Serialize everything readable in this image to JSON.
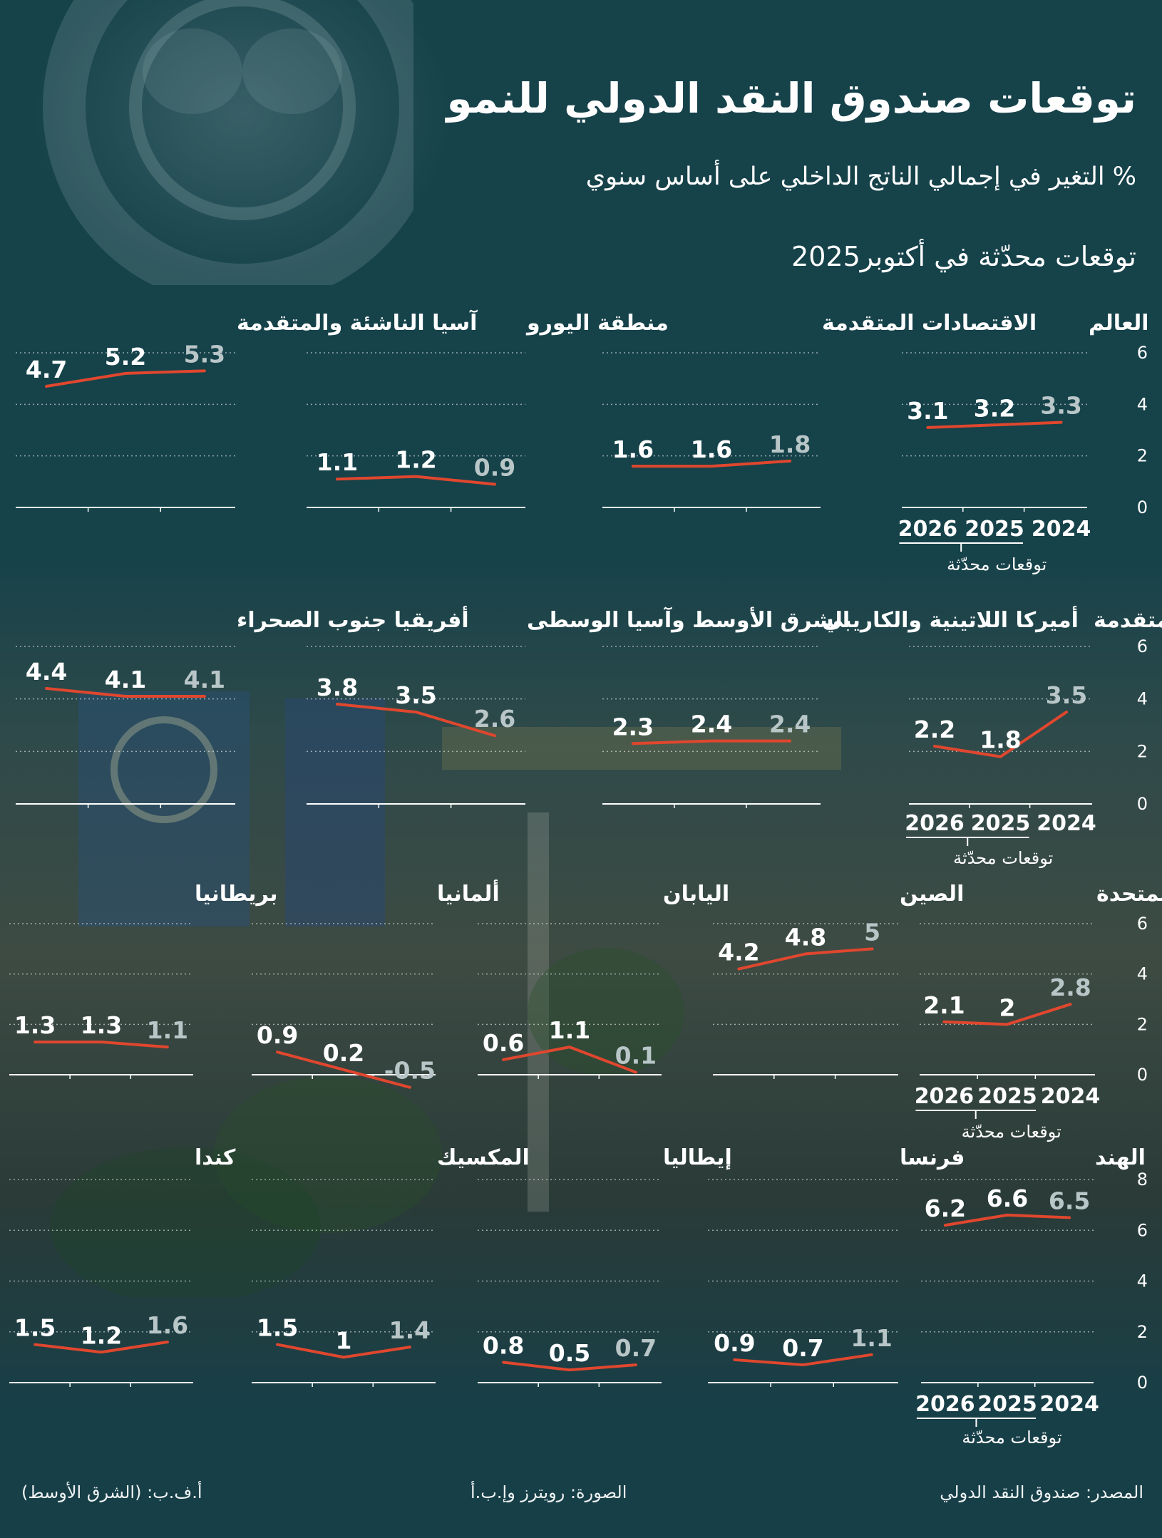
{
  "title": "توقعات صندوق النقد الدولي للنمو",
  "subtitle": "% التغير في إجمالي الناتج الداخلي على أساس سنوي",
  "subtitle2": "توقعات محدّثة في أكتوبر2025",
  "footer": {
    "source": "المصدر: صندوق النقد الدولي",
    "photo": "الصورة: رويترز وإ.ب.أ",
    "credit": "أ.ف.ب: (الشرق الأوسط)"
  },
  "legend_label": "توقعات محدّثة",
  "colors": {
    "background": "#173f48",
    "line": "#e0472e",
    "text": "#ffffff",
    "muted": "#b9c6c8"
  },
  "chart_data": [
    {
      "type": "line",
      "title": "العالم",
      "x": [
        "2024",
        "2025",
        "2026"
      ],
      "values": [
        3.3,
        3.2,
        3.1
      ],
      "labels": [
        "3.3",
        "3.2",
        "3.1"
      ],
      "ylim": [
        0,
        6
      ],
      "yticks": [
        "0",
        "2",
        "4",
        "6"
      ]
    },
    {
      "type": "line",
      "title": "الاقتصادات المتقدمة",
      "x": [
        "2024",
        "2025",
        "2026"
      ],
      "values": [
        1.8,
        1.6,
        1.6
      ],
      "labels": [
        "1.8",
        "1.6",
        "1.6"
      ],
      "ylim": [
        0,
        6
      ]
    },
    {
      "type": "line",
      "title": "منطقة اليورو",
      "x": [
        "2024",
        "2025",
        "2026"
      ],
      "values": [
        0.9,
        1.2,
        1.1
      ],
      "labels": [
        "0.9",
        "1.2",
        "1.1"
      ],
      "ylim": [
        0,
        6
      ]
    },
    {
      "type": "line",
      "title": "آسيا الناشئة والمتقدمة",
      "x": [
        "2024",
        "2025",
        "2026"
      ],
      "values": [
        5.3,
        5.2,
        4.7
      ],
      "labels": [
        "5.3",
        "5.2",
        "4.7"
      ],
      "ylim": [
        0,
        6
      ]
    },
    {
      "type": "line",
      "title": "أوروبا الناشئة والمتقدمة",
      "x": [
        "2024",
        "2025",
        "2026"
      ],
      "values": [
        3.5,
        1.8,
        2.2
      ],
      "labels": [
        "3.5",
        "1.8",
        "2.2"
      ],
      "ylim": [
        0,
        6
      ],
      "yticks": [
        "0",
        "2",
        "4",
        "6"
      ]
    },
    {
      "type": "line",
      "title": "أميركا اللاتينية والكاريبي",
      "x": [
        "2024",
        "2025",
        "2026"
      ],
      "values": [
        2.4,
        2.4,
        2.3
      ],
      "labels": [
        "2.4",
        "2.4",
        "2.3"
      ],
      "ylim": [
        0,
        6
      ]
    },
    {
      "type": "line",
      "title": "الشرق الأوسط وآسيا الوسطى",
      "x": [
        "2024",
        "2025",
        "2026"
      ],
      "values": [
        2.6,
        3.5,
        3.8
      ],
      "labels": [
        "2.6",
        "3.5",
        "3.8"
      ],
      "ylim": [
        0,
        6
      ]
    },
    {
      "type": "line",
      "title": "أفريقيا جنوب الصحراء",
      "x": [
        "2024",
        "2025",
        "2026"
      ],
      "values": [
        4.1,
        4.1,
        4.4
      ],
      "labels": [
        "4.1",
        "4.1",
        "4.4"
      ],
      "ylim": [
        0,
        6
      ]
    },
    {
      "type": "line",
      "title": "الولايات المتحدة",
      "x": [
        "2024",
        "2025",
        "2026"
      ],
      "values": [
        2.8,
        2,
        2.1
      ],
      "labels": [
        "2.8",
        "2",
        "2.1"
      ],
      "ylim": [
        0,
        6
      ],
      "yticks": [
        "0",
        "2",
        "4",
        "6"
      ]
    },
    {
      "type": "line",
      "title": "الصين",
      "x": [
        "2024",
        "2025",
        "2026"
      ],
      "values": [
        5,
        4.8,
        4.2
      ],
      "labels": [
        "5",
        "4.8",
        "4.2"
      ],
      "ylim": [
        0,
        6
      ]
    },
    {
      "type": "line",
      "title": "اليابان",
      "x": [
        "2024",
        "2025",
        "2026"
      ],
      "values": [
        0.1,
        1.1,
        0.6
      ],
      "labels": [
        "0.1",
        "1.1",
        "0.6"
      ],
      "ylim": [
        0,
        6
      ]
    },
    {
      "type": "line",
      "title": "ألمانيا",
      "x": [
        "2024",
        "2025",
        "2026"
      ],
      "values": [
        -0.5,
        0.2,
        0.9
      ],
      "labels": [
        "-0.5",
        "0.2",
        "0.9"
      ],
      "ylim": [
        0,
        6
      ]
    },
    {
      "type": "line",
      "title": "بريطانيا",
      "x": [
        "2024",
        "2025",
        "2026"
      ],
      "values": [
        1.1,
        1.3,
        1.3
      ],
      "labels": [
        "1.1",
        "1.3",
        "1.3"
      ],
      "ylim": [
        0,
        6
      ]
    },
    {
      "type": "line",
      "title": "الهند",
      "x": [
        "2024",
        "2025",
        "2026"
      ],
      "values": [
        6.5,
        6.6,
        6.2
      ],
      "labels": [
        "6.5",
        "6.6",
        "6.2"
      ],
      "ylim": [
        0,
        8
      ],
      "yticks": [
        "0",
        "2",
        "4",
        "6",
        "8"
      ]
    },
    {
      "type": "line",
      "title": "فرنسا",
      "x": [
        "2024",
        "2025",
        "2026"
      ],
      "values": [
        1.1,
        0.7,
        0.9
      ],
      "labels": [
        "1.1",
        "0.7",
        "0.9"
      ],
      "ylim": [
        0,
        8
      ]
    },
    {
      "type": "line",
      "title": "إيطاليا",
      "x": [
        "2024",
        "2025",
        "2026"
      ],
      "values": [
        0.7,
        0.5,
        0.8
      ],
      "labels": [
        "0.7",
        "0.5",
        "0.8"
      ],
      "ylim": [
        0,
        8
      ]
    },
    {
      "type": "line",
      "title": "المكسيك",
      "x": [
        "2024",
        "2025",
        "2026"
      ],
      "values": [
        1.4,
        1,
        1.5
      ],
      "labels": [
        "1.4",
        "1",
        "1.5"
      ],
      "ylim": [
        0,
        8
      ]
    },
    {
      "type": "line",
      "title": "كندا",
      "x": [
        "2024",
        "2025",
        "2026"
      ],
      "values": [
        1.6,
        1.2,
        1.5
      ],
      "labels": [
        "1.6",
        "1.2",
        "1.5"
      ],
      "ylim": [
        0,
        8
      ]
    }
  ]
}
